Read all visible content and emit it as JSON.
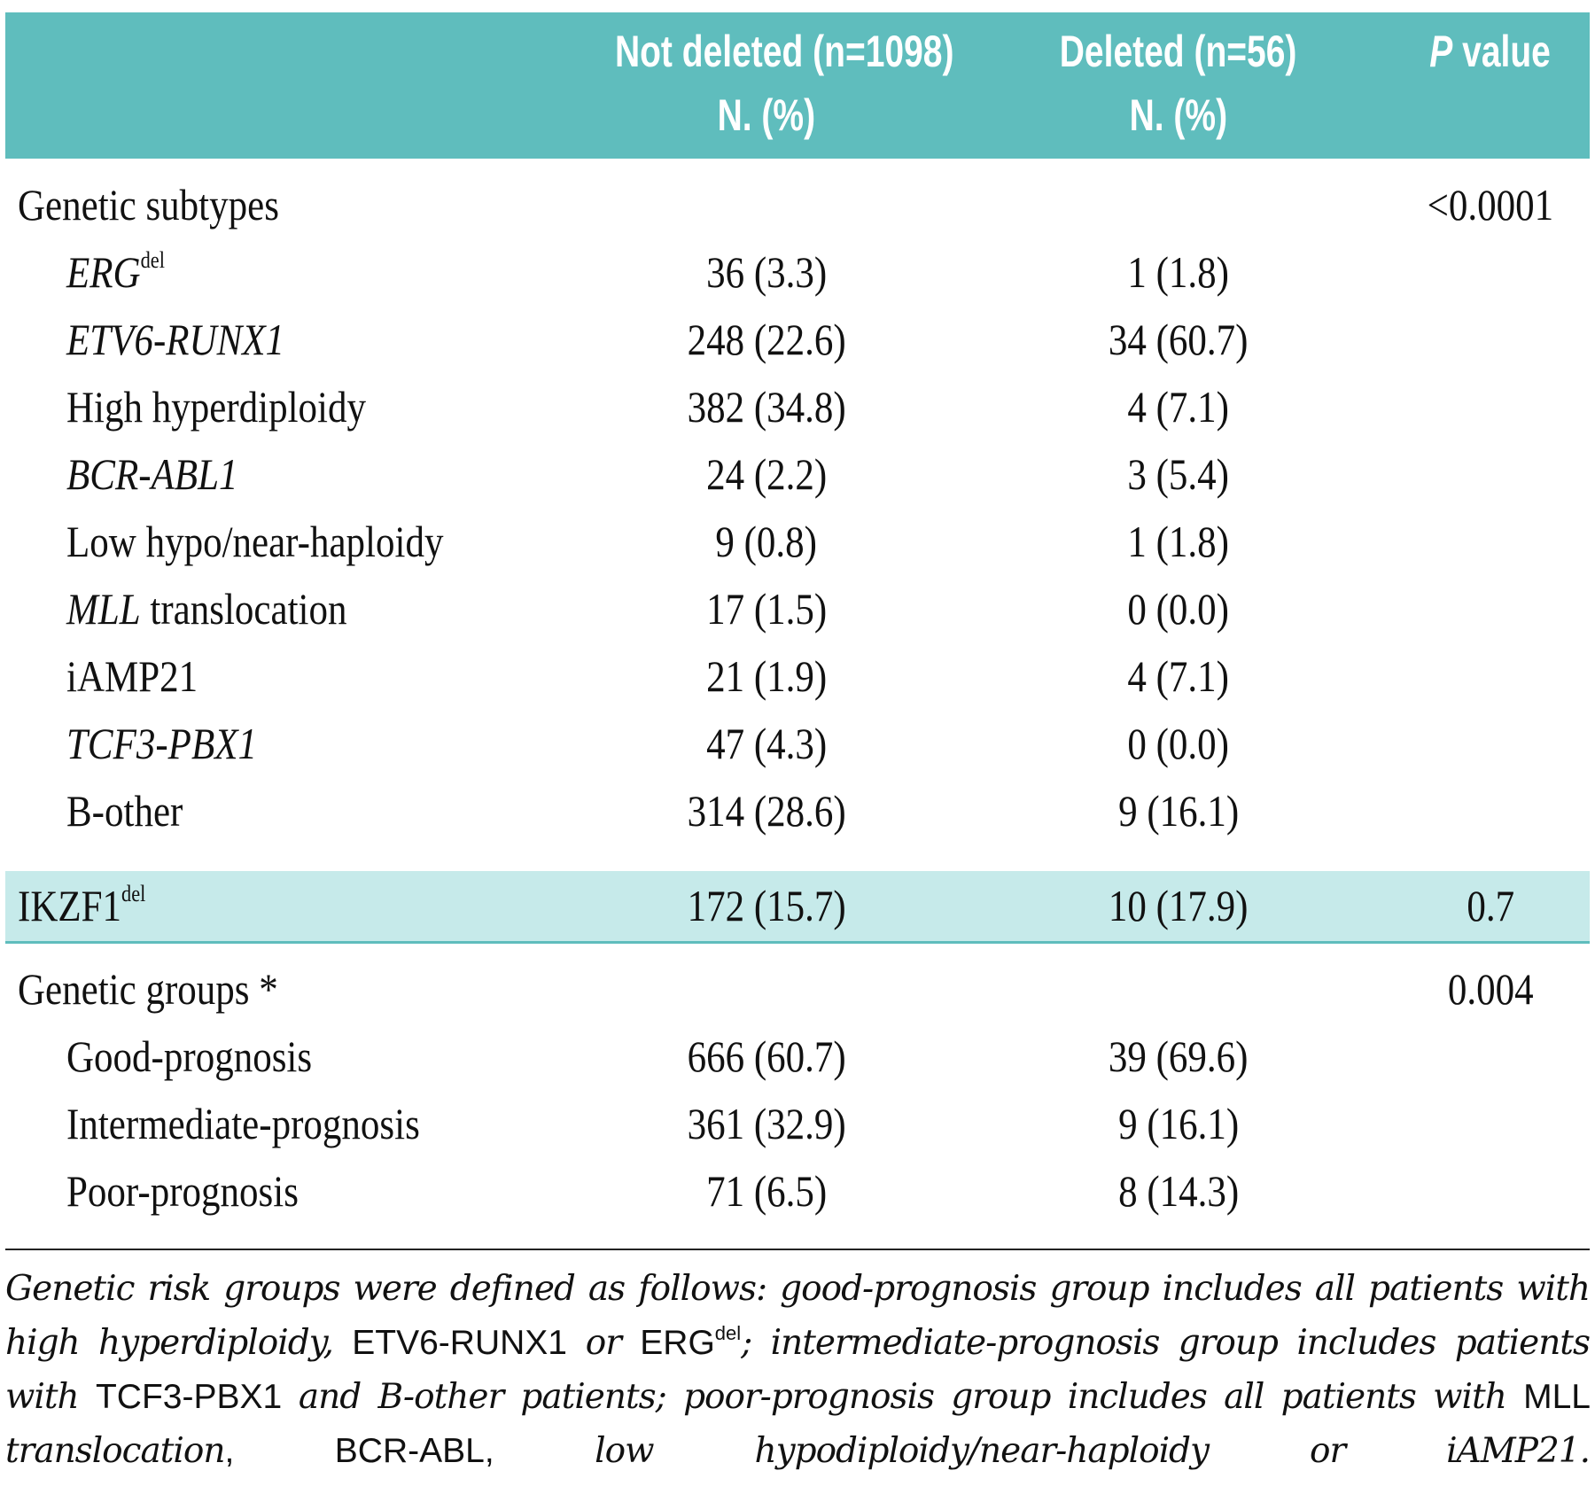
{
  "table": {
    "header": {
      "not_deleted": {
        "line1": "Not deleted (n=1098)",
        "line2": "N. (%)"
      },
      "deleted": {
        "line1": "Deleted (n=56)",
        "line2": "N. (%)"
      },
      "p_value": {
        "italic": "P",
        "rest": "value"
      }
    },
    "sections": [
      {
        "label": "Genetic subtypes",
        "p_value": "<0.0001",
        "rows": [
          {
            "label": [
              {
                "text": "ERG",
                "italic": true
              }
            ],
            "sup": "del",
            "not_deleted": "36 (3.3)",
            "deleted": "1 (1.8)"
          },
          {
            "label": [
              {
                "text": "ETV6-RUNX1",
                "italic": true
              }
            ],
            "not_deleted": "248 (22.6)",
            "deleted": "34 (60.7)"
          },
          {
            "label": [
              {
                "text": "High hyperdiploidy"
              }
            ],
            "not_deleted": "382 (34.8)",
            "deleted": "4 (7.1)"
          },
          {
            "label": [
              {
                "text": "BCR-ABL1",
                "italic": true
              }
            ],
            "not_deleted": "24 (2.2)",
            "deleted": "3 (5.4)"
          },
          {
            "label": [
              {
                "text": "Low hypo/near-haploidy"
              }
            ],
            "not_deleted": "9 (0.8)",
            "deleted": "1 (1.8)"
          },
          {
            "label": [
              {
                "text": "MLL",
                "italic": true
              },
              {
                "text": " translocation"
              }
            ],
            "not_deleted": "17 (1.5)",
            "deleted": "0 (0.0)"
          },
          {
            "label": [
              {
                "text": "iAMP21"
              }
            ],
            "not_deleted": "21 (1.9)",
            "deleted": "4 (7.1)"
          },
          {
            "label": [
              {
                "text": "TCF3-PBX1",
                "italic": true
              }
            ],
            "not_deleted": "47 (4.3)",
            "deleted": "0 (0.0)"
          },
          {
            "label": [
              {
                "text": "B-other"
              }
            ],
            "not_deleted": "314 (28.6)",
            "deleted": "9 (16.1)"
          }
        ]
      },
      {
        "label": "Genetic groups *",
        "p_value": "0.004",
        "rows": [
          {
            "label": [
              {
                "text": "Good-prognosis"
              }
            ],
            "not_deleted": "666 (60.7)",
            "deleted": "39 (69.6)"
          },
          {
            "label": [
              {
                "text": "Intermediate-prognosis"
              }
            ],
            "not_deleted": "361 (32.9)",
            "deleted": "9 (16.1)"
          },
          {
            "label": [
              {
                "text": "Poor-prognosis"
              }
            ],
            "not_deleted": "71 (6.5)",
            "deleted": "8 (14.3)"
          }
        ]
      }
    ],
    "highlighted_row": {
      "label": [
        {
          "text": "IKZF1"
        }
      ],
      "sup": "del",
      "not_deleted": "172 (15.7)",
      "deleted": "10 (17.9)",
      "p_value": "0.7"
    },
    "footnote": [
      {
        "text": "Genetic risk groups were defined as follows: good-prognosis group includes all patients with high hyperdiploidy, ",
        "italic": true
      },
      {
        "text": "ETV6-RUNX1 "
      },
      {
        "text": "or ",
        "italic": true
      },
      {
        "text": "ERG"
      },
      {
        "text": "del",
        "sup": true
      },
      {
        "text": "; intermediate-prognosis group includes patients with ",
        "italic": true
      },
      {
        "text": "TCF3-PBX1 "
      },
      {
        "text": "and B-other patients; poor-prognosis group includes all patients with ",
        "italic": true
      },
      {
        "text": "MLL "
      },
      {
        "text": "translocation",
        "italic": true
      },
      {
        "text": ", BCR-ABL, "
      },
      {
        "text": "low hypodiploidy/near-haploidy or iAMP21.",
        "italic": true
      }
    ]
  }
}
